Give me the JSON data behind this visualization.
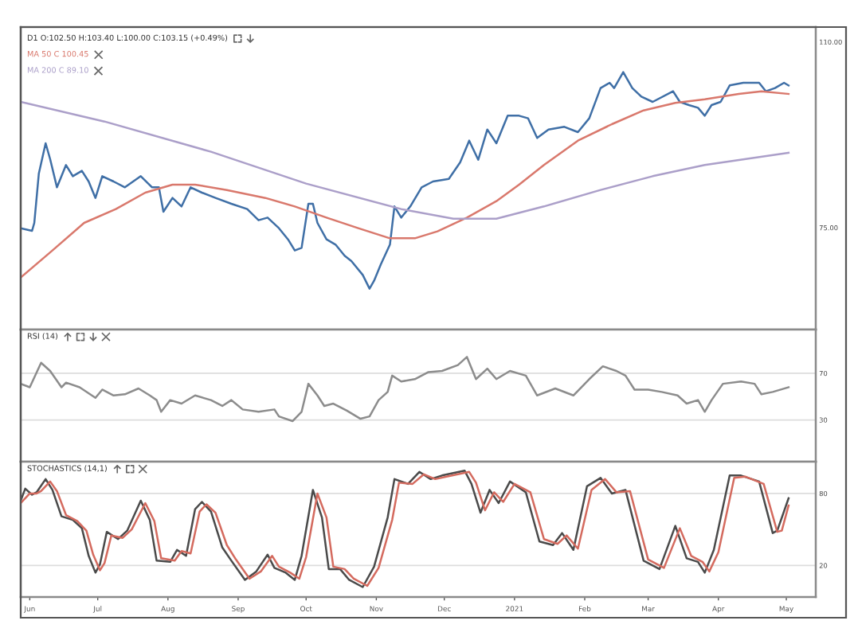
{
  "chart_data": [
    {
      "type": "line",
      "title": "D1 O:102.50 H:103.40 L:100.00 C:103.15 (+0.49%)",
      "legend": "top left",
      "tick_labels": "y",
      "xlim": [
        "2020-05-28",
        "2021-05-14"
      ],
      "ylim": [
        55.8,
        112.8
      ],
      "yticks": [
        {
          "value": 75,
          "label": "75.00"
        },
        {
          "value": 110,
          "label": "110.00"
        }
      ],
      "series": [
        {
          "color": "#3f6fa6",
          "x": [
            "2020-05-28",
            "2020-06-02",
            "2020-06-03",
            "2020-06-05",
            "2020-06-08",
            "2020-06-10",
            "2020-06-13",
            "2020-06-17",
            "2020-06-20",
            "2020-06-24",
            "2020-06-27",
            "2020-06-30",
            "2020-07-03",
            "2020-07-08",
            "2020-07-13",
            "2020-07-20",
            "2020-07-25",
            "2020-07-28",
            "2020-07-30",
            "2020-08-03",
            "2020-08-07",
            "2020-08-11",
            "2020-08-16",
            "2020-08-22",
            "2020-08-29",
            "2020-09-05",
            "2020-09-10",
            "2020-09-14",
            "2020-09-19",
            "2020-09-23",
            "2020-09-26",
            "2020-09-29",
            "2020-10-02",
            "2020-10-04",
            "2020-10-06",
            "2020-10-10",
            "2020-10-14",
            "2020-10-18",
            "2020-10-21",
            "2020-10-26",
            "2020-10-29",
            "2020-10-31",
            "2020-11-03",
            "2020-11-07",
            "2020-11-09",
            "2020-11-12",
            "2020-11-16",
            "2020-11-21",
            "2020-11-26",
            "2020-12-03",
            "2020-12-08",
            "2020-12-12",
            "2020-12-16",
            "2020-12-20",
            "2020-12-24",
            "2020-12-29",
            "2021-01-03",
            "2021-01-07",
            "2021-01-11",
            "2021-01-16",
            "2021-01-23",
            "2021-01-29",
            "2021-02-03",
            "2021-02-08",
            "2021-02-12",
            "2021-02-14",
            "2021-02-18",
            "2021-02-22",
            "2021-02-26",
            "2021-03-03",
            "2021-03-12",
            "2021-03-15",
            "2021-03-19",
            "2021-03-23",
            "2021-03-26",
            "2021-03-29",
            "2021-04-02",
            "2021-04-06",
            "2021-04-12",
            "2021-04-19",
            "2021-04-22",
            "2021-04-26",
            "2021-04-30",
            "2021-05-02"
          ],
          "values": [
            74.9,
            74.4,
            75.9,
            85.2,
            90.9,
            87.9,
            82.6,
            86.8,
            84.7,
            85.7,
            83.7,
            80.6,
            84.7,
            83.7,
            82.6,
            84.7,
            82.6,
            82.6,
            78.0,
            80.6,
            79.0,
            82.6,
            81.6,
            80.6,
            79.5,
            78.5,
            76.4,
            76.9,
            74.9,
            72.8,
            70.7,
            71.2,
            79.5,
            79.5,
            75.9,
            72.8,
            71.8,
            69.7,
            68.7,
            66.1,
            63.5,
            65.0,
            68.1,
            71.8,
            79.0,
            76.9,
            79.0,
            82.6,
            83.7,
            84.2,
            87.3,
            91.4,
            87.8,
            93.5,
            90.9,
            96.1,
            96.1,
            95.6,
            91.9,
            93.5,
            94.0,
            93.0,
            95.6,
            101.3,
            102.3,
            101.3,
            104.3,
            101.3,
            99.7,
            98.7,
            100.7,
            98.7,
            98.1,
            97.6,
            96.1,
            98.1,
            98.7,
            101.8,
            102.3,
            102.3,
            100.7,
            101.3,
            102.3,
            101.8
          ]
        },
        {
          "name": "MA 50 C 100.45",
          "color": "#d9786c",
          "x": [
            "2020-05-28",
            "2020-06-11",
            "2020-06-25",
            "2020-07-09",
            "2020-07-22",
            "2020-08-03",
            "2020-08-13",
            "2020-08-27",
            "2020-09-13",
            "2020-09-26",
            "2020-10-10",
            "2020-10-24",
            "2020-11-07",
            "2020-11-18",
            "2020-11-28",
            "2020-12-11",
            "2020-12-24",
            "2021-01-03",
            "2021-01-14",
            "2021-01-29",
            "2021-02-13",
            "2021-02-27",
            "2021-03-13",
            "2021-03-26",
            "2021-04-10",
            "2021-04-20",
            "2021-05-02"
          ],
          "values": [
            65.6,
            70.7,
            75.9,
            78.5,
            81.6,
            83.1,
            83.1,
            82.1,
            80.6,
            79.0,
            76.9,
            74.9,
            73.0,
            73.0,
            74.3,
            76.9,
            80.0,
            83.1,
            86.8,
            91.4,
            94.5,
            97.1,
            98.5,
            99.2,
            100.2,
            100.7,
            100.2
          ]
        },
        {
          "name": "MA 200 C 89.10",
          "color": "#ab9fc9",
          "x": [
            "2020-05-28",
            "2020-07-04",
            "2020-08-20",
            "2020-10-01",
            "2020-11-12",
            "2020-12-05",
            "2020-12-24",
            "2021-01-14",
            "2021-02-08",
            "2021-03-03",
            "2021-03-26",
            "2021-05-02"
          ],
          "values": [
            98.7,
            95.0,
            89.3,
            83.3,
            78.5,
            76.7,
            76.7,
            79.0,
            82.1,
            84.7,
            86.8,
            89.1
          ]
        }
      ]
    },
    {
      "type": "line",
      "title": "RSI (14)",
      "tick_labels": "y",
      "grid": "y",
      "xlim": [
        "2020-05-28",
        "2021-05-14"
      ],
      "ylim": [
        -5.8,
        107.5
      ],
      "yticks": [
        30,
        70
      ],
      "series": [
        {
          "color": "#8c8c8c",
          "x": [
            "2020-05-28",
            "2020-06-01",
            "2020-06-06",
            "2020-06-10",
            "2020-06-15",
            "2020-06-17",
            "2020-06-23",
            "2020-06-30",
            "2020-07-03",
            "2020-07-08",
            "2020-07-13",
            "2020-07-19",
            "2020-07-24",
            "2020-07-27",
            "2020-07-29",
            "2020-08-02",
            "2020-08-07",
            "2020-08-13",
            "2020-08-20",
            "2020-08-25",
            "2020-08-29",
            "2020-09-03",
            "2020-09-10",
            "2020-09-17",
            "2020-09-19",
            "2020-09-25",
            "2020-09-29",
            "2020-10-02",
            "2020-10-06",
            "2020-10-09",
            "2020-10-13",
            "2020-10-19",
            "2020-10-25",
            "2020-10-29",
            "2020-11-02",
            "2020-11-06",
            "2020-11-08",
            "2020-11-12",
            "2020-11-18",
            "2020-11-24",
            "2020-11-30",
            "2020-12-07",
            "2020-12-11",
            "2020-12-15",
            "2020-12-20",
            "2020-12-24",
            "2020-12-30",
            "2021-01-06",
            "2021-01-11",
            "2021-01-19",
            "2021-01-27",
            "2021-02-03",
            "2021-02-09",
            "2021-02-15",
            "2021-02-19",
            "2021-02-23",
            "2021-03-01",
            "2021-03-07",
            "2021-03-14",
            "2021-03-18",
            "2021-03-23",
            "2021-03-26",
            "2021-03-29",
            "2021-04-03",
            "2021-04-11",
            "2021-04-17",
            "2021-04-20",
            "2021-04-25",
            "2021-05-02"
          ],
          "values": [
            61,
            58,
            79,
            72,
            58,
            62,
            58,
            49,
            56,
            51,
            52,
            57,
            51,
            47,
            37,
            47,
            44,
            51,
            47,
            42,
            47,
            39,
            37,
            39,
            33,
            29,
            37,
            61,
            51,
            42,
            44,
            38,
            31,
            33,
            47,
            54,
            68,
            63,
            65,
            71,
            72,
            77,
            84,
            65,
            74,
            65,
            72,
            68,
            51,
            57,
            51,
            65,
            76,
            72,
            68,
            56,
            56,
            54,
            51,
            44,
            47,
            37,
            47,
            61,
            63,
            61,
            52,
            54,
            58
          ]
        }
      ]
    },
    {
      "type": "line",
      "title": "STOCHASTICS (14,1)",
      "grid": "y",
      "xlim": [
        "2020-05-28",
        "2021-05-14"
      ],
      "ylim": [
        -6.3,
        106.5
      ],
      "yticks": [
        20,
        80
      ],
      "xticks": [
        {
          "value": "2020-06-01",
          "label": "Jun"
        },
        {
          "value": "2020-07-01",
          "label": "Jul"
        },
        {
          "value": "2020-08-01",
          "label": "Aug"
        },
        {
          "value": "2020-09-01",
          "label": "Sep"
        },
        {
          "value": "2020-10-01",
          "label": "Oct"
        },
        {
          "value": "2020-11-01",
          "label": "Nov"
        },
        {
          "value": "2020-12-01",
          "label": "Dec"
        },
        {
          "value": "2021-01-01",
          "label": "2021"
        },
        {
          "value": "2021-02-01",
          "label": "Feb"
        },
        {
          "value": "2021-03-01",
          "label": "Mar"
        },
        {
          "value": "2021-04-01",
          "label": "Apr"
        },
        {
          "value": "2021-05-01",
          "label": "May"
        }
      ],
      "series": [
        {
          "color": "#4a4a4a",
          "x": [
            "2020-05-28",
            "2020-05-30",
            "2020-06-02",
            "2020-06-04",
            "2020-06-08",
            "2020-06-11",
            "2020-06-15",
            "2020-06-20",
            "2020-06-24",
            "2020-06-27",
            "2020-06-30",
            "2020-07-02",
            "2020-07-05",
            "2020-07-10",
            "2020-07-14",
            "2020-07-20",
            "2020-07-24",
            "2020-07-27",
            "2020-08-02",
            "2020-08-05",
            "2020-08-09",
            "2020-08-13",
            "2020-08-16",
            "2020-08-20",
            "2020-08-25",
            "2020-08-29",
            "2020-09-04",
            "2020-09-09",
            "2020-09-14",
            "2020-09-17",
            "2020-09-22",
            "2020-09-26",
            "2020-09-29",
            "2020-10-04",
            "2020-10-08",
            "2020-10-11",
            "2020-10-16",
            "2020-10-20",
            "2020-10-26",
            "2020-10-31",
            "2020-11-06",
            "2020-11-09",
            "2020-11-15",
            "2020-11-20",
            "2020-11-25",
            "2020-11-30",
            "2020-12-10",
            "2020-12-13",
            "2020-12-17",
            "2020-12-21",
            "2020-12-25",
            "2020-12-30",
            "2021-01-06",
            "2021-01-12",
            "2021-01-18",
            "2021-01-22",
            "2021-01-27",
            "2021-02-02",
            "2021-02-08",
            "2021-02-13",
            "2021-02-19",
            "2021-02-27",
            "2021-03-06",
            "2021-03-13",
            "2021-03-18",
            "2021-03-23",
            "2021-03-26",
            "2021-03-30",
            "2021-04-06",
            "2021-04-11",
            "2021-04-19",
            "2021-04-25",
            "2021-04-27",
            "2021-05-02"
          ],
          "values": [
            74,
            84,
            79,
            81,
            92,
            83,
            61,
            58,
            51,
            28,
            14,
            21,
            48,
            42,
            49,
            74,
            58,
            24,
            23,
            33,
            28,
            67,
            73,
            65,
            35,
            24,
            8,
            15,
            29,
            18,
            14,
            8,
            28,
            83,
            60,
            17,
            17,
            8,
            2,
            19,
            60,
            92,
            88,
            98,
            92,
            95,
            99,
            88,
            64,
            83,
            72,
            90,
            81,
            40,
            37,
            47,
            33,
            86,
            93,
            80,
            83,
            24,
            17,
            53,
            26,
            23,
            14,
            33,
            95,
            95,
            90,
            47,
            49,
            76
          ]
        },
        {
          "color": "#d46a5e",
          "x": [
            "2020-05-28",
            "2020-06-01",
            "2020-06-04",
            "2020-06-06",
            "2020-06-10",
            "2020-06-13",
            "2020-06-17",
            "2020-06-22",
            "2020-06-26",
            "2020-06-29",
            "2020-07-02",
            "2020-07-04",
            "2020-07-07",
            "2020-07-12",
            "2020-07-16",
            "2020-07-22",
            "2020-07-26",
            "2020-07-29",
            "2020-08-04",
            "2020-08-07",
            "2020-08-11",
            "2020-08-15",
            "2020-08-18",
            "2020-08-22",
            "2020-08-27",
            "2020-08-31",
            "2020-09-06",
            "2020-09-11",
            "2020-09-16",
            "2020-09-19",
            "2020-09-24",
            "2020-09-28",
            "2020-10-01",
            "2020-10-06",
            "2020-10-10",
            "2020-10-13",
            "2020-10-18",
            "2020-10-22",
            "2020-10-28",
            "2020-11-02",
            "2020-11-08",
            "2020-11-11",
            "2020-11-17",
            "2020-11-22",
            "2020-11-27",
            "2020-12-02",
            "2020-12-12",
            "2020-12-15",
            "2020-12-19",
            "2020-12-23",
            "2020-12-27",
            "2021-01-01",
            "2021-01-08",
            "2021-01-14",
            "2021-01-20",
            "2021-01-24",
            "2021-01-29",
            "2021-02-04",
            "2021-02-10",
            "2021-02-15",
            "2021-02-21",
            "2021-03-01",
            "2021-03-08",
            "2021-03-15",
            "2021-03-20",
            "2021-03-25",
            "2021-03-28",
            "2021-04-01",
            "2021-04-08",
            "2021-04-13",
            "2021-04-21",
            "2021-04-27",
            "2021-04-29",
            "2021-05-02"
          ],
          "values": [
            72,
            80,
            80,
            82,
            90,
            82,
            62,
            57,
            49,
            29,
            16,
            22,
            45,
            43,
            50,
            72,
            57,
            26,
            24,
            32,
            30,
            65,
            71,
            64,
            37,
            25,
            9,
            15,
            28,
            19,
            14,
            9,
            27,
            80,
            60,
            19,
            17,
            9,
            3,
            18,
            58,
            89,
            88,
            96,
            92,
            94,
            98,
            89,
            66,
            81,
            73,
            88,
            81,
            42,
            38,
            45,
            34,
            83,
            92,
            81,
            82,
            25,
            18,
            51,
            28,
            23,
            15,
            31,
            93,
            94,
            88,
            48,
            49,
            70
          ]
        }
      ]
    }
  ]
}
